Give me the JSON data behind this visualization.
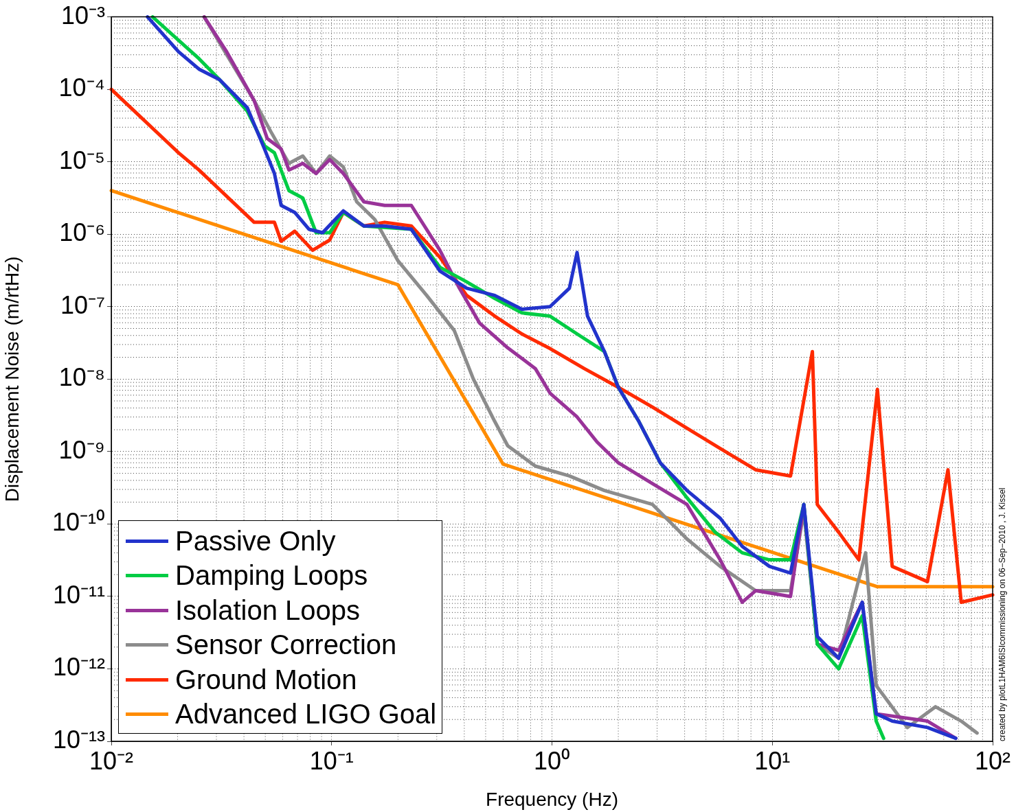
{
  "chart_data": {
    "type": "line",
    "xlabel": "Frequency (Hz)",
    "ylabel": "Displacement Noise (m/rtHz)",
    "log": "xy",
    "grid": true,
    "legend": "bottom left",
    "marker": "none",
    "line_style": "solid",
    "xlim": [
      0.01,
      100
    ],
    "xticks": [
      {
        "value": 0.01,
        "label": "10⁻²"
      },
      {
        "value": 0.1,
        "label": "10⁻¹"
      },
      {
        "value": 1,
        "label": "10⁰"
      },
      {
        "value": 10,
        "label": "10¹"
      },
      {
        "value": 100,
        "label": "10²"
      }
    ],
    "ylim": [
      1e-13,
      0.001
    ],
    "yticks": [
      {
        "value": 1e-13,
        "label": "10⁻¹³"
      },
      {
        "value": 1e-12,
        "label": "10⁻¹²"
      },
      {
        "value": 1e-11,
        "label": "10⁻¹¹"
      },
      {
        "value": 1e-10,
        "label": "10⁻¹⁰"
      },
      {
        "value": 1e-09,
        "label": "10⁻⁹"
      },
      {
        "value": 1e-08,
        "label": "10⁻⁸"
      },
      {
        "value": 1e-07,
        "label": "10⁻⁷"
      },
      {
        "value": 1e-06,
        "label": "10⁻⁶"
      },
      {
        "value": 1e-05,
        "label": "10⁻⁵"
      },
      {
        "value": 0.0001,
        "label": "10⁻⁴"
      },
      {
        "value": 0.001,
        "label": "10⁻³"
      }
    ],
    "annotations": [
      "created by plotL1HAM6ISIcommissioning on 06−Sep−2010 , J. Kissel"
    ],
    "series": [
      {
        "name": "Passive Only",
        "color": "#2233cc",
        "x": [
          0.0146,
          0.0202,
          0.025,
          0.031,
          0.0414,
          0.0496,
          0.055,
          0.059,
          0.068,
          0.079,
          0.091,
          0.113,
          0.14,
          0.174,
          0.23,
          0.31,
          0.41,
          0.55,
          0.73,
          0.98,
          1.2,
          1.3,
          1.45,
          1.73,
          2.0,
          2.48,
          3.1,
          4.1,
          5.8,
          7.3,
          9.7,
          12.1,
          13.9,
          16,
          20,
          25.6,
          29.6,
          35,
          50.6,
          68
        ],
        "values": [
          0.001,
          0.00033,
          0.00019,
          0.000136,
          5.6e-05,
          1.5e-05,
          6.9e-06,
          2.5e-06,
          2e-06,
          1.17e-06,
          1.05e-06,
          2.1e-06,
          1.3e-06,
          1.3e-06,
          1.17e-06,
          3.1e-07,
          1.8e-07,
          1.43e-07,
          9.2e-08,
          1e-07,
          1.8e-07,
          5.6e-07,
          7.4e-08,
          2.4e-08,
          7.7e-09,
          2.6e-09,
          7e-10,
          2.9e-10,
          1.2e-10,
          4.9e-11,
          2.6e-11,
          2.1e-11,
          1.86e-10,
          2.8e-12,
          1.4e-12,
          8.3e-12,
          2.4e-13,
          1.9e-13,
          1.55e-13,
          1.1e-13
        ]
      },
      {
        "name": "Damping Loops",
        "color": "#00cc44",
        "x": [
          0.0154,
          0.025,
          0.031,
          0.0414,
          0.0496,
          0.055,
          0.064,
          0.074,
          0.085,
          0.098,
          0.113,
          0.14,
          0.23,
          0.31,
          0.41,
          0.55,
          0.73,
          0.98,
          1.3,
          1.73,
          2.0,
          2.48,
          3.1,
          4.1,
          5.5,
          7.3,
          9.7,
          12.1,
          13.9,
          16,
          20,
          25.6,
          29.6,
          32
        ],
        "values": [
          0.001,
          0.000265,
          0.000136,
          5e-05,
          1.66e-05,
          1.33e-05,
          4e-06,
          3.16e-06,
          1.05e-06,
          1.05e-06,
          2e-06,
          1.3e-06,
          1.17e-06,
          3.5e-07,
          2.2e-07,
          1.3e-07,
          8.2e-08,
          7.4e-08,
          4.2e-08,
          2.4e-08,
          7.7e-09,
          2.6e-09,
          7e-10,
          2.3e-10,
          7.7e-11,
          4e-11,
          3.2e-11,
          3.2e-11,
          1.86e-10,
          2.2e-12,
          1e-12,
          5.4e-12,
          1.9e-13,
          1.1e-13
        ]
      },
      {
        "name": "Isolation Loops",
        "color": "#993399",
        "x": [
          0.0264,
          0.0334,
          0.0445,
          0.051,
          0.059,
          0.064,
          0.074,
          0.085,
          0.098,
          0.113,
          0.14,
          0.174,
          0.23,
          0.31,
          0.38,
          0.47,
          0.63,
          0.84,
          0.98,
          1.3,
          1.6,
          2.0,
          2.86,
          4.1,
          5.8,
          7.3,
          8.4,
          12.1,
          13.9,
          16,
          20,
          25.6,
          29.6,
          50.6,
          68
        ],
        "values": [
          0.001,
          0.00033,
          7e-05,
          2.1e-05,
          1.5e-05,
          7.7e-06,
          9.5e-06,
          6.9e-06,
          1.07e-05,
          6.9e-06,
          2.8e-06,
          2.5e-06,
          2.5e-06,
          6e-07,
          1.8e-07,
          5.9e-08,
          2.7e-08,
          1.4e-08,
          6.4e-09,
          3e-09,
          1.36e-09,
          7e-10,
          3.6e-10,
          1.86e-10,
          3.2e-11,
          8.3e-12,
          1.2e-11,
          1e-11,
          1.86e-10,
          2.2e-12,
          1.8e-12,
          8.3e-12,
          2.4e-13,
          1.9e-13,
          1.1e-13
        ]
      },
      {
        "name": "Sensor Correction",
        "color": "#8c8c8c",
        "x": [
          0.0264,
          0.0334,
          0.0445,
          0.053,
          0.064,
          0.074,
          0.085,
          0.098,
          0.113,
          0.13,
          0.157,
          0.2,
          0.27,
          0.36,
          0.44,
          0.55,
          0.63,
          0.84,
          1.2,
          1.73,
          2.86,
          4.1,
          5.8,
          8.4,
          12.1,
          13.9,
          16,
          20,
          26.5,
          29.6,
          41,
          55,
          72,
          85
        ],
        "values": [
          0.001,
          0.0003,
          7e-05,
          2.6e-05,
          9.5e-06,
          1.2e-05,
          6.9e-06,
          1.2e-05,
          8.5e-06,
          2.8e-06,
          1.6e-06,
          4.3e-07,
          1.43e-07,
          4.7e-08,
          1e-08,
          2.6e-09,
          1.2e-09,
          6.3e-10,
          4.6e-10,
          2.9e-10,
          1.86e-10,
          6.2e-11,
          2.6e-11,
          1.2e-11,
          1.2e-11,
          1.5e-10,
          2.2e-12,
          1.4e-12,
          4e-11,
          5.9e-13,
          1.55e-13,
          3e-13,
          1.9e-13,
          1.3e-13
        ]
      },
      {
        "name": "Ground Motion",
        "color": "#ff2a00",
        "x": [
          0.01,
          0.0202,
          0.025,
          0.0445,
          0.055,
          0.059,
          0.068,
          0.082,
          0.098,
          0.113,
          0.14,
          0.174,
          0.23,
          0.31,
          0.41,
          0.55,
          0.73,
          0.98,
          1.4,
          2.0,
          2.86,
          4.1,
          5.8,
          8.4,
          12.1,
          15.2,
          16,
          20,
          24.7,
          30,
          35,
          50.6,
          62.7,
          72,
          100
        ],
        "values": [
          0.0001,
          1.33e-05,
          7.7e-06,
          1.46e-06,
          1.46e-06,
          8e-07,
          1.1e-06,
          6e-07,
          8.3e-07,
          2e-06,
          1.3e-06,
          1.46e-06,
          1.3e-06,
          4.8e-07,
          1.43e-07,
          7.4e-08,
          4.2e-08,
          2.64e-08,
          1.4e-08,
          7.7e-09,
          4.1e-09,
          2.1e-09,
          1.1e-09,
          5.6e-10,
          4.6e-10,
          2.4e-08,
          1.86e-10,
          7.7e-11,
          3.2e-11,
          7.2e-09,
          2.6e-11,
          1.6e-11,
          5.6e-10,
          8.3e-12,
          1.05e-11
        ]
      },
      {
        "name": "Advanced LIGO Goal",
        "color": "#ff8c00",
        "x": [
          0.01,
          0.2,
          0.6,
          30,
          100
        ],
        "values": [
          4e-06,
          2e-07,
          6.7e-10,
          1.36e-11,
          1.36e-11
        ]
      }
    ]
  }
}
